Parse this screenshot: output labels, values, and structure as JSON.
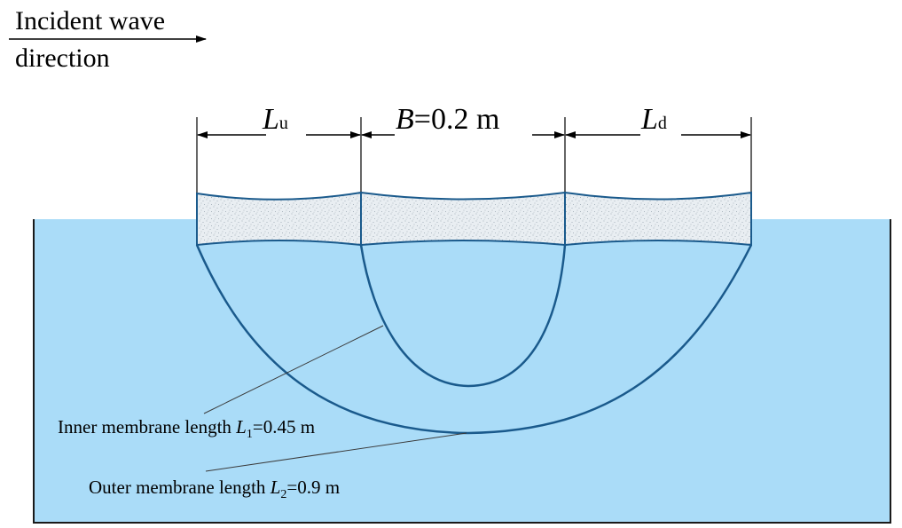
{
  "header": {
    "wave_line1": "Incident wave",
    "wave_line2": "direction"
  },
  "dimensions": {
    "upstream": {
      "symbol": "L",
      "subscript": "u"
    },
    "middle": {
      "symbol": "B",
      "rest": "=0.2 m"
    },
    "downstream": {
      "symbol": "L",
      "subscript": "d"
    }
  },
  "labels": {
    "inner": {
      "prefix": "Inner membrane length ",
      "symbol": "L",
      "subscript": "1",
      "value": "=0.45 m"
    },
    "outer": {
      "prefix": "Outer membrane length ",
      "symbol": "L",
      "subscript": "2",
      "value": "=0.9 m"
    }
  },
  "colors": {
    "water": "#aadcf8",
    "outline": "#1a5a8c",
    "pontoon_fill": "#e9eef2",
    "pontoon_speckle": "#9aa7b2"
  }
}
